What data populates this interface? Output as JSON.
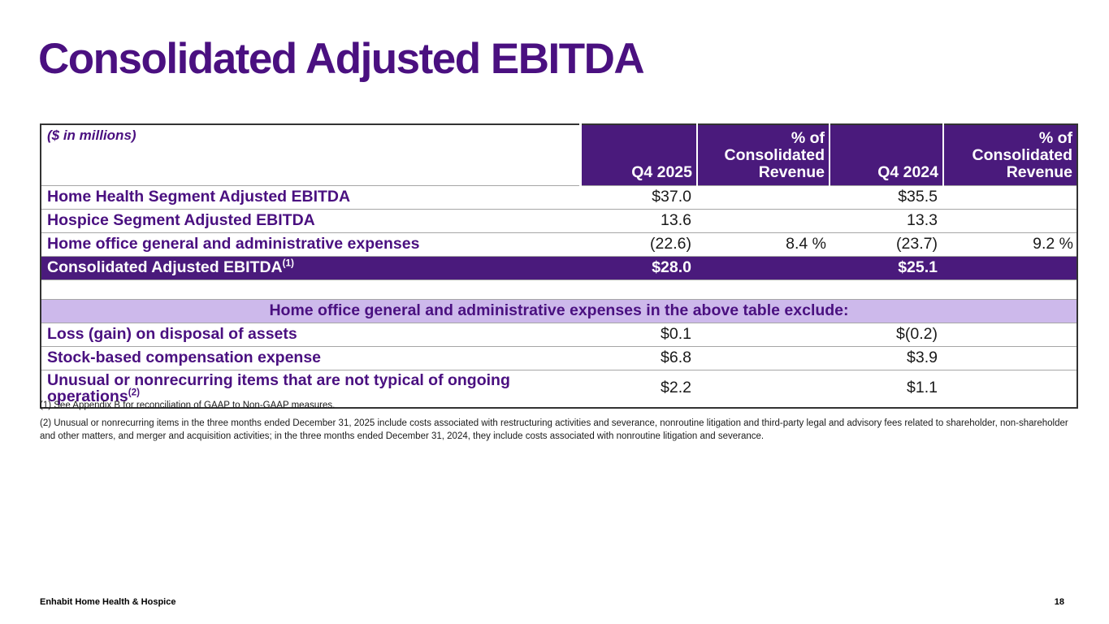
{
  "page": {
    "title": "Consolidated Adjusted EBITDA",
    "footer_left": "Enhabit Home Health & Hospice",
    "page_number": "18"
  },
  "colors": {
    "brand_purple": "#4a1080",
    "header_purple": "#4a1a7c",
    "banner_purple": "#cdb9eb",
    "value_black": "#1a1a1a",
    "row_line_gray": "#a6a6a6"
  },
  "table": {
    "unit_note": "($ in millions)",
    "headers": [
      "Q4 2025",
      "% of Consolidated Revenue",
      "Q4 2024",
      "% of Consolidated Revenue"
    ],
    "rows": [
      {
        "label": "Home Health Segment Adjusted EBITDA",
        "sup": "",
        "q4_2025": "$37.0",
        "pct_2025": "",
        "q4_2024": "$35.5",
        "pct_2024": ""
      },
      {
        "label": "Hospice Segment Adjusted EBITDA",
        "sup": "",
        "q4_2025": "13.6",
        "pct_2025": "",
        "q4_2024": "13.3",
        "pct_2024": ""
      },
      {
        "label": "Home office general and administrative expenses",
        "sup": "",
        "q4_2025": "(22.6)",
        "pct_2025": "8.4 %",
        "q4_2024": "(23.7)",
        "pct_2024": "9.2 %"
      },
      {
        "label": "Consolidated Adjusted EBITDA",
        "sup": "(1)",
        "q4_2025": "$28.0",
        "pct_2025": "",
        "q4_2024": "$25.1",
        "pct_2024": ""
      }
    ],
    "banner": "Home office general and administrative expenses in the above table exclude:",
    "exclusion_rows": [
      {
        "label": "Loss (gain) on disposal of assets",
        "sup": "",
        "q4_2025": "$0.1",
        "pct_2025": "",
        "q4_2024": "$(0.2)",
        "pct_2024": ""
      },
      {
        "label": "Stock-based compensation expense",
        "sup": "",
        "q4_2025": "$6.8",
        "pct_2025": "",
        "q4_2024": "$3.9",
        "pct_2024": ""
      },
      {
        "label": "Unusual or nonrecurring items that are not typical of ongoing operations",
        "sup": "(2)",
        "q4_2025": "$2.2",
        "pct_2025": "",
        "q4_2024": "$1.1",
        "pct_2024": ""
      }
    ]
  },
  "footnotes": [
    "(1) See Appendix B for reconciliation of GAAP to Non-GAAP measures.",
    "(2) Unusual or nonrecurring items in the three months ended December 31, 2025 include costs associated with restructuring activities and severance, nonroutine litigation and third-party legal and advisory fees related to shareholder, non-shareholder and other matters, and merger and acquisition activities; in the three months ended December 31, 2024, they include costs associated with nonroutine litigation and severance."
  ]
}
